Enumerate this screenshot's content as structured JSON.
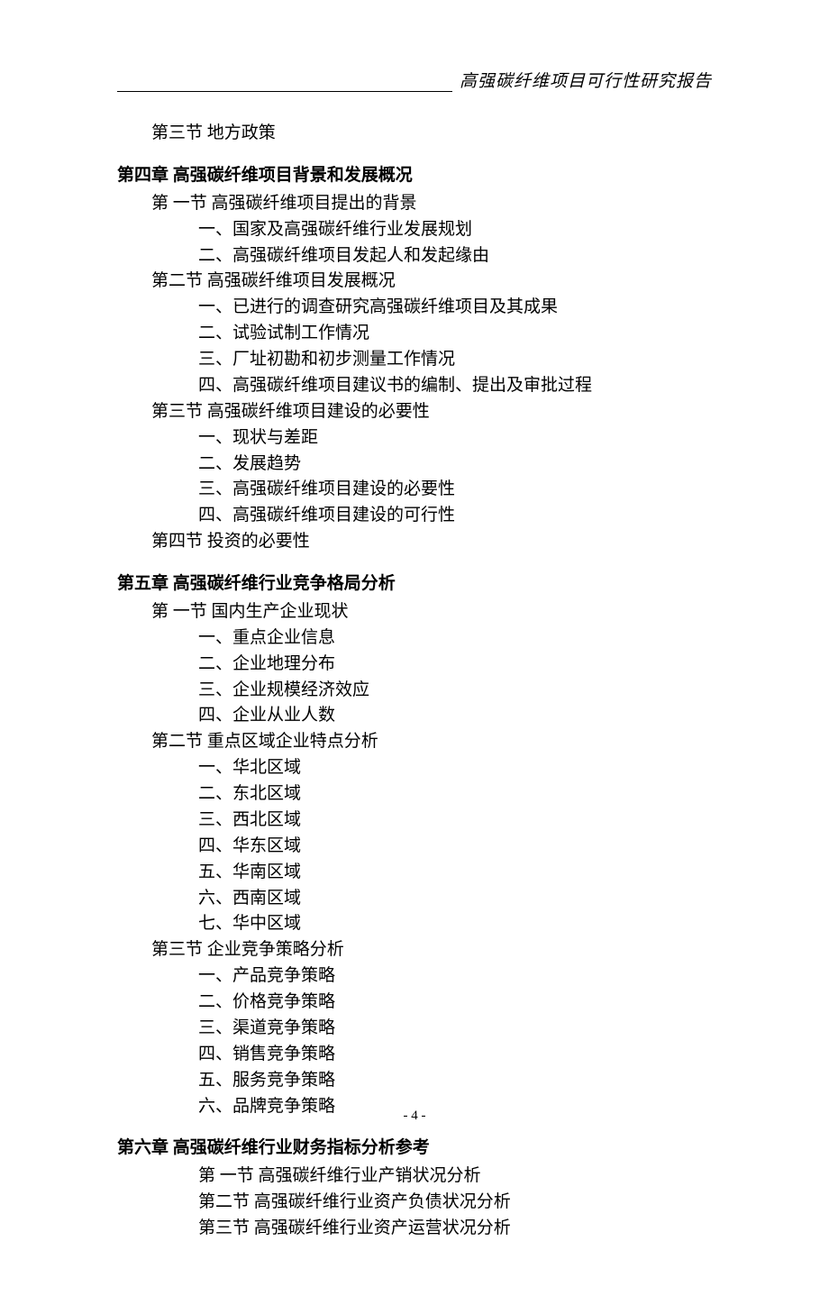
{
  "header": {
    "title": "高强碳纤维项目可行性研究报告"
  },
  "lines": [
    {
      "text": "第三节   地方政策",
      "indent": 1,
      "type": "normal",
      "first": true
    },
    {
      "text": "第四章  高强碳纤维项目背景和发展概况",
      "indent": 0,
      "type": "chapter"
    },
    {
      "text": "第 一节  高强碳纤维项目提出的背景",
      "indent": 2,
      "type": "normal"
    },
    {
      "text": "一、国家及高强碳纤维行业发展规划",
      "indent": 3,
      "type": "normal"
    },
    {
      "text": "二、高强碳纤维项目发起人和发起缘由",
      "indent": 3,
      "type": "normal"
    },
    {
      "text": "第二节  高强碳纤维项目发展概况",
      "indent": 2,
      "type": "normal"
    },
    {
      "text": "一、已进行的调查研究高强碳纤维项目及其成果",
      "indent": 3,
      "type": "normal"
    },
    {
      "text": "二、试验试制工作情况",
      "indent": 3,
      "type": "normal"
    },
    {
      "text": "三、厂址初勘和初步测量工作情况",
      "indent": 3,
      "type": "normal"
    },
    {
      "text": "四、高强碳纤维项目建议书的编制、提出及审批过程",
      "indent": 3,
      "type": "normal"
    },
    {
      "text": "第三节  高强碳纤维项目建设的必要性",
      "indent": 2,
      "type": "normal"
    },
    {
      "text": "一、现状与差距",
      "indent": 3,
      "type": "normal"
    },
    {
      "text": "二、发展趋势",
      "indent": 3,
      "type": "normal"
    },
    {
      "text": "三、高强碳纤维项目建设的必要性",
      "indent": 3,
      "type": "normal"
    },
    {
      "text": "四、高强碳纤维项目建设的可行性",
      "indent": 3,
      "type": "normal"
    },
    {
      "text": "第四节   投资的必要性",
      "indent": 2,
      "type": "normal"
    },
    {
      "text": "第五章  高强碳纤维行业竞争格局分析",
      "indent": 0,
      "type": "chapter"
    },
    {
      "text": "第 一节   国内生产企业现状",
      "indent": 2,
      "type": "normal"
    },
    {
      "text": "一、重点企业信息",
      "indent": 3,
      "type": "normal"
    },
    {
      "text": "二、企业地理分布",
      "indent": 3,
      "type": "normal"
    },
    {
      "text": "三、企业规模经济效应",
      "indent": 3,
      "type": "normal"
    },
    {
      "text": "四、企业从业人数",
      "indent": 3,
      "type": "normal"
    },
    {
      "text": "第二节   重点区域企业特点分析",
      "indent": 2,
      "type": "normal"
    },
    {
      "text": "一、华北区域",
      "indent": 3,
      "type": "normal"
    },
    {
      "text": "二、东北区域",
      "indent": 3,
      "type": "normal"
    },
    {
      "text": "三、西北区域",
      "indent": 3,
      "type": "normal"
    },
    {
      "text": "四、华东区域",
      "indent": 3,
      "type": "normal"
    },
    {
      "text": "五、华南区域",
      "indent": 3,
      "type": "normal"
    },
    {
      "text": "六、西南区域",
      "indent": 3,
      "type": "normal"
    },
    {
      "text": "七、华中区域",
      "indent": 3,
      "type": "normal"
    },
    {
      "text": "第三节   企业竞争策略分析",
      "indent": 2,
      "type": "normal"
    },
    {
      "text": "一、产品竞争策略",
      "indent": 3,
      "type": "normal"
    },
    {
      "text": "二、价格竞争策略",
      "indent": 3,
      "type": "normal"
    },
    {
      "text": "三、渠道竞争策略",
      "indent": 3,
      "type": "normal"
    },
    {
      "text": "四、销售竞争策略",
      "indent": 3,
      "type": "normal"
    },
    {
      "text": "五、服务竞争策略",
      "indent": 3,
      "type": "normal"
    },
    {
      "text": "六、品牌竞争策略",
      "indent": 3,
      "type": "normal"
    },
    {
      "text": "第六章  高强碳纤维行业财务指标分析参考",
      "indent": 0,
      "type": "chapter"
    },
    {
      "text": "第 一节  高强碳纤维行业产销状况分析",
      "indent": 3,
      "type": "normal"
    },
    {
      "text": "第二节  高强碳纤维行业资产负债状况分析",
      "indent": 3,
      "type": "normal"
    },
    {
      "text": "第三节  高强碳纤维行业资产运营状况分析",
      "indent": 3,
      "type": "normal"
    }
  ],
  "pageNumber": "- 4 -"
}
